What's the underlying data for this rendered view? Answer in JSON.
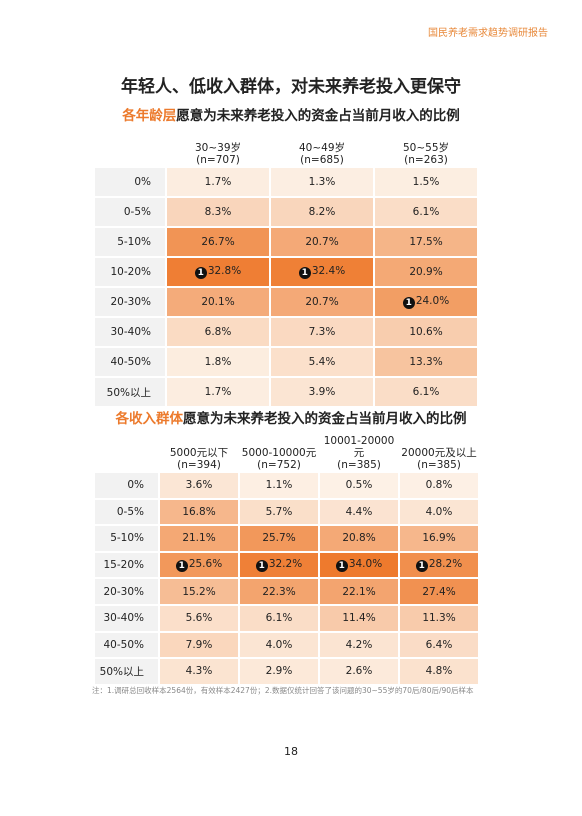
{
  "header": {
    "report_name": "国民养老需求趋势调研报告"
  },
  "title": "年轻人、低收入群体，对未来养老投入更保守",
  "tables": [
    {
      "subtitle_highlight": "各年龄层",
      "subtitle": "愿意为未来养老投入的资金占当前月收入的比例",
      "columns": [
        {
          "label": "30~39岁",
          "n": "(n=707)"
        },
        {
          "label": "40~49岁",
          "n": "(n=685)"
        },
        {
          "label": "50~55岁",
          "n": "(n=263)"
        }
      ],
      "rows": [
        {
          "label": "0%",
          "cells": [
            "1.7%",
            "1.3%",
            "1.5%"
          ]
        },
        {
          "label": "0-5%",
          "cells": [
            "8.3%",
            "8.2%",
            "6.1%"
          ]
        },
        {
          "label": "5-10%",
          "cells": [
            "26.7%",
            "20.7%",
            "17.5%"
          ]
        },
        {
          "label": "10-20%",
          "cells": [
            {
              "badge": "1",
              "text": "32.8%"
            },
            {
              "badge": "1",
              "text": "32.4%"
            },
            "20.9%"
          ]
        },
        {
          "label": "20-30%",
          "cells": [
            "20.1%",
            "20.7%",
            {
              "badge": "1",
              "text": "24.0%"
            }
          ]
        },
        {
          "label": "30-40%",
          "cells": [
            "6.8%",
            "7.3%",
            "10.6%"
          ]
        },
        {
          "label": "40-50%",
          "cells": [
            "1.8%",
            "5.4%",
            "13.3%"
          ]
        },
        {
          "label": "50%以上",
          "cells": [
            "1.7%",
            "3.9%",
            "6.1%"
          ]
        }
      ]
    },
    {
      "subtitle_highlight": "各收入群体",
      "subtitle": "愿意为未来养老投入的资金占当前月收入的比例",
      "columns": [
        {
          "label": "5000元以下",
          "n": "(n=394)"
        },
        {
          "label": "5000-10000元",
          "n": "(n=752)"
        },
        {
          "label": "10001-20000元",
          "n": "(n=385)"
        },
        {
          "label": "20000元及以上",
          "n": "(n=385)"
        }
      ],
      "rows": [
        {
          "label": "0%",
          "cells": [
            "3.6%",
            "1.1%",
            "0.5%",
            "0.8%"
          ]
        },
        {
          "label": "0-5%",
          "cells": [
            "16.8%",
            "5.7%",
            "4.4%",
            "4.0%"
          ]
        },
        {
          "label": "5-10%",
          "cells": [
            "21.1%",
            "25.7%",
            "20.8%",
            "16.9%"
          ]
        },
        {
          "label": "15-20%",
          "cells": [
            {
              "badge": "1",
              "text": "25.6%"
            },
            {
              "badge": "1",
              "text": "32.2%"
            },
            {
              "badge": "1",
              "text": "34.0%"
            },
            {
              "badge": "1",
              "text": "28.2%"
            }
          ]
        },
        {
          "label": "20-30%",
          "cells": [
            "15.2%",
            "22.3%",
            "22.1%",
            "27.4%"
          ]
        },
        {
          "label": "30-40%",
          "cells": [
            "5.6%",
            "6.1%",
            "11.4%",
            "11.3%"
          ]
        },
        {
          "label": "40-50%",
          "cells": [
            "7.9%",
            "4.0%",
            "4.2%",
            "6.4%"
          ]
        },
        {
          "label": "50%以上",
          "cells": [
            "4.3%",
            "2.9%",
            "2.6%",
            "4.8%"
          ]
        }
      ]
    }
  ],
  "note": "注：1.调研总回收样本2564份，有效样本2427份；2.数据仅统计回答了该问题的30~55岁的70后/80后/90后样本",
  "page_number": "18"
}
